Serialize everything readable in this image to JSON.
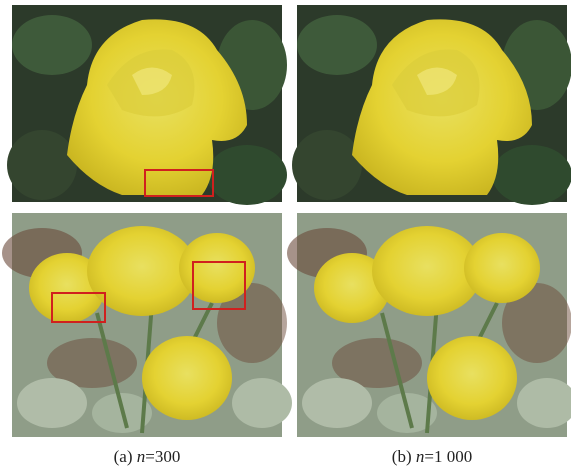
{
  "figure": {
    "captions": [
      {
        "label": "(a)",
        "variable": "n",
        "value": "=300"
      },
      {
        "label": "(b)",
        "variable": "n",
        "value": "=1 000"
      }
    ]
  }
}
